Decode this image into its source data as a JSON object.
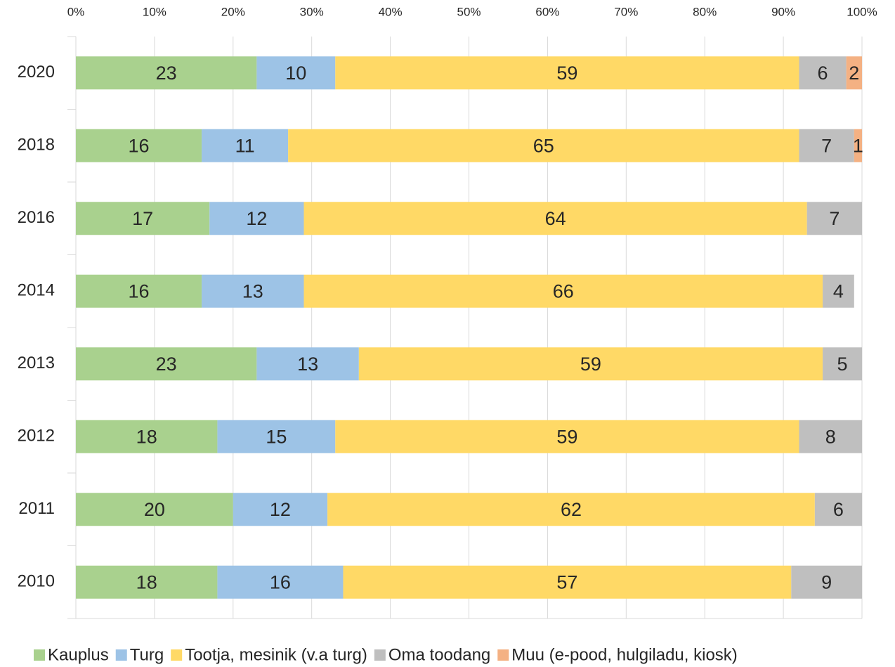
{
  "chart_data": {
    "type": "stacked_barh",
    "categories": [
      "2020",
      "2018",
      "2016",
      "2014",
      "2013",
      "2012",
      "2011",
      "2010"
    ],
    "series": [
      {
        "name": "Kauplus",
        "color": "#a9d18e",
        "values": [
          23,
          16,
          17,
          16,
          23,
          18,
          20,
          18
        ]
      },
      {
        "name": "Turg",
        "color": "#9dc3e6",
        "values": [
          10,
          11,
          12,
          13,
          13,
          15,
          12,
          16
        ]
      },
      {
        "name": "Tootja, mesinik (v.a turg)",
        "color": "#ffd966",
        "values": [
          59,
          65,
          64,
          66,
          59,
          59,
          62,
          57
        ]
      },
      {
        "name": "Oma toodang",
        "color": "#bfbfbf",
        "values": [
          6,
          7,
          7,
          4,
          5,
          8,
          6,
          9
        ]
      },
      {
        "name": "Muu (e-pood, hulgiladu, kiosk)",
        "color": "#f4b183",
        "values": [
          2,
          1,
          null,
          null,
          null,
          null,
          null,
          null
        ]
      }
    ],
    "xlim": [
      0,
      100
    ],
    "xticks": [
      {
        "value": 0,
        "label": "0%"
      },
      {
        "value": 10,
        "label": "10%"
      },
      {
        "value": 20,
        "label": "20%"
      },
      {
        "value": 30,
        "label": "30%"
      },
      {
        "value": 40,
        "label": "40%"
      },
      {
        "value": 50,
        "label": "50%"
      },
      {
        "value": 60,
        "label": "60%"
      },
      {
        "value": 70,
        "label": "70%"
      },
      {
        "value": 80,
        "label": "80%"
      },
      {
        "value": 90,
        "label": "90%"
      },
      {
        "value": 100,
        "label": "100%"
      }
    ],
    "grid": true,
    "legend": "bottom"
  }
}
